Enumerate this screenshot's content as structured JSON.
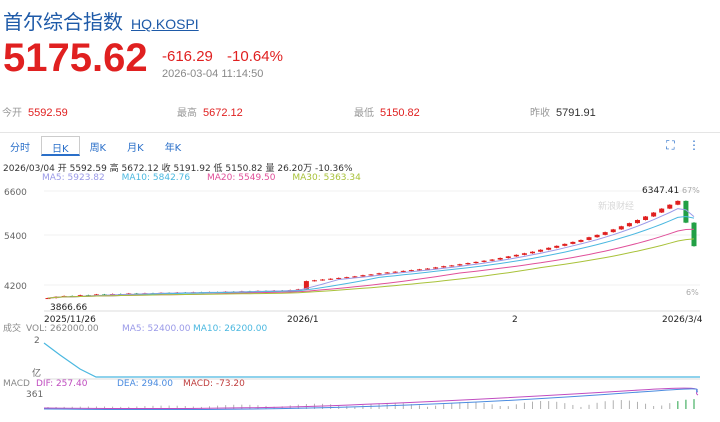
{
  "header": {
    "title": "首尔综合指数",
    "code": "HQ.KOSPI",
    "price": "5175.62",
    "change": "-616.29",
    "change_pct": "-10.64%",
    "time": "2026-03-04 11:14:50"
  },
  "stats": {
    "open_label": "今开",
    "open": "5592.59",
    "high_label": "最高",
    "high": "5672.12",
    "low_label": "最低",
    "low": "5150.82",
    "prev_label": "昨收",
    "prev": "5791.91"
  },
  "tabs": [
    "分时",
    "日K",
    "周K",
    "月K",
    "年K"
  ],
  "active_tab": "日K",
  "toolbar": {
    "fullscreen_icon": "fullscreen-icon",
    "more_icon": "more-icon"
  },
  "ohlc_line": "2026/03/04 开 5592.59 高 5672.12 收 5191.92 低 5150.82 量 26.20万 -10.36%",
  "ma": {
    "ma5": "MA5: 5923.82",
    "ma10": "MA10: 5842.76",
    "ma20": "MA20: 5549.50",
    "ma30": "MA30: 5363.34"
  },
  "price_axis": [
    "6600",
    "5400",
    "4200"
  ],
  "pct_axis": [
    "67%",
    "6%"
  ],
  "max_label": "6347.41",
  "min_label": "3866.66",
  "date_axis": [
    "2025/11/26",
    "2026/1",
    "2",
    "2026/3/4"
  ],
  "watermark": "新浪财经",
  "volume": {
    "label": "成交",
    "vol": "VOL: 262000.00",
    "ma5": "MA5: 52400.00",
    "ma10": "MA10: 26200.00",
    "top_axis": "2",
    "unit": "亿"
  },
  "macd": {
    "label": "MACD",
    "dif": "DIF: 257.40",
    "dea": "DEA: 294.00",
    "macd": "MACD: -73.20",
    "axis": "361"
  },
  "colors": {
    "up": "#e02020",
    "down": "#22a045",
    "ma5": "#9a9ae8",
    "ma10": "#4bb8e0",
    "ma20": "#e0509a",
    "ma30": "#a9c23a",
    "macd_dif": "#c04cc0",
    "macd_dea": "#4b8ce0"
  },
  "chart_data": {
    "type": "candlestick",
    "series": [
      {
        "name": "price",
        "values": [
          3866.66,
          3900,
          3920,
          3910,
          3940,
          3930,
          3960,
          3950,
          3970,
          3960,
          3985,
          3975,
          3990,
          3985,
          4000,
          3995,
          4010,
          4000,
          4015,
          4010,
          4020,
          4015,
          4030,
          4025,
          4040,
          4035,
          4050,
          4045,
          4060,
          4055,
          4070,
          4090,
          4300,
          4320,
          4340,
          4360,
          4380,
          4400,
          4420,
          4450,
          4470,
          4500,
          4520,
          4540,
          4560,
          4580,
          4600,
          4620,
          4650,
          4680,
          4700,
          4730,
          4760,
          4790,
          4820,
          4850,
          4890,
          4930,
          4970,
          5010,
          5050,
          5100,
          5150,
          5200,
          5250,
          5300,
          5350,
          5420,
          5480,
          5550,
          5620,
          5700,
          5780,
          5860,
          5950,
          6050,
          6150,
          6250,
          6347.41,
          5791.91,
          5191.92
        ]
      }
    ]
  }
}
